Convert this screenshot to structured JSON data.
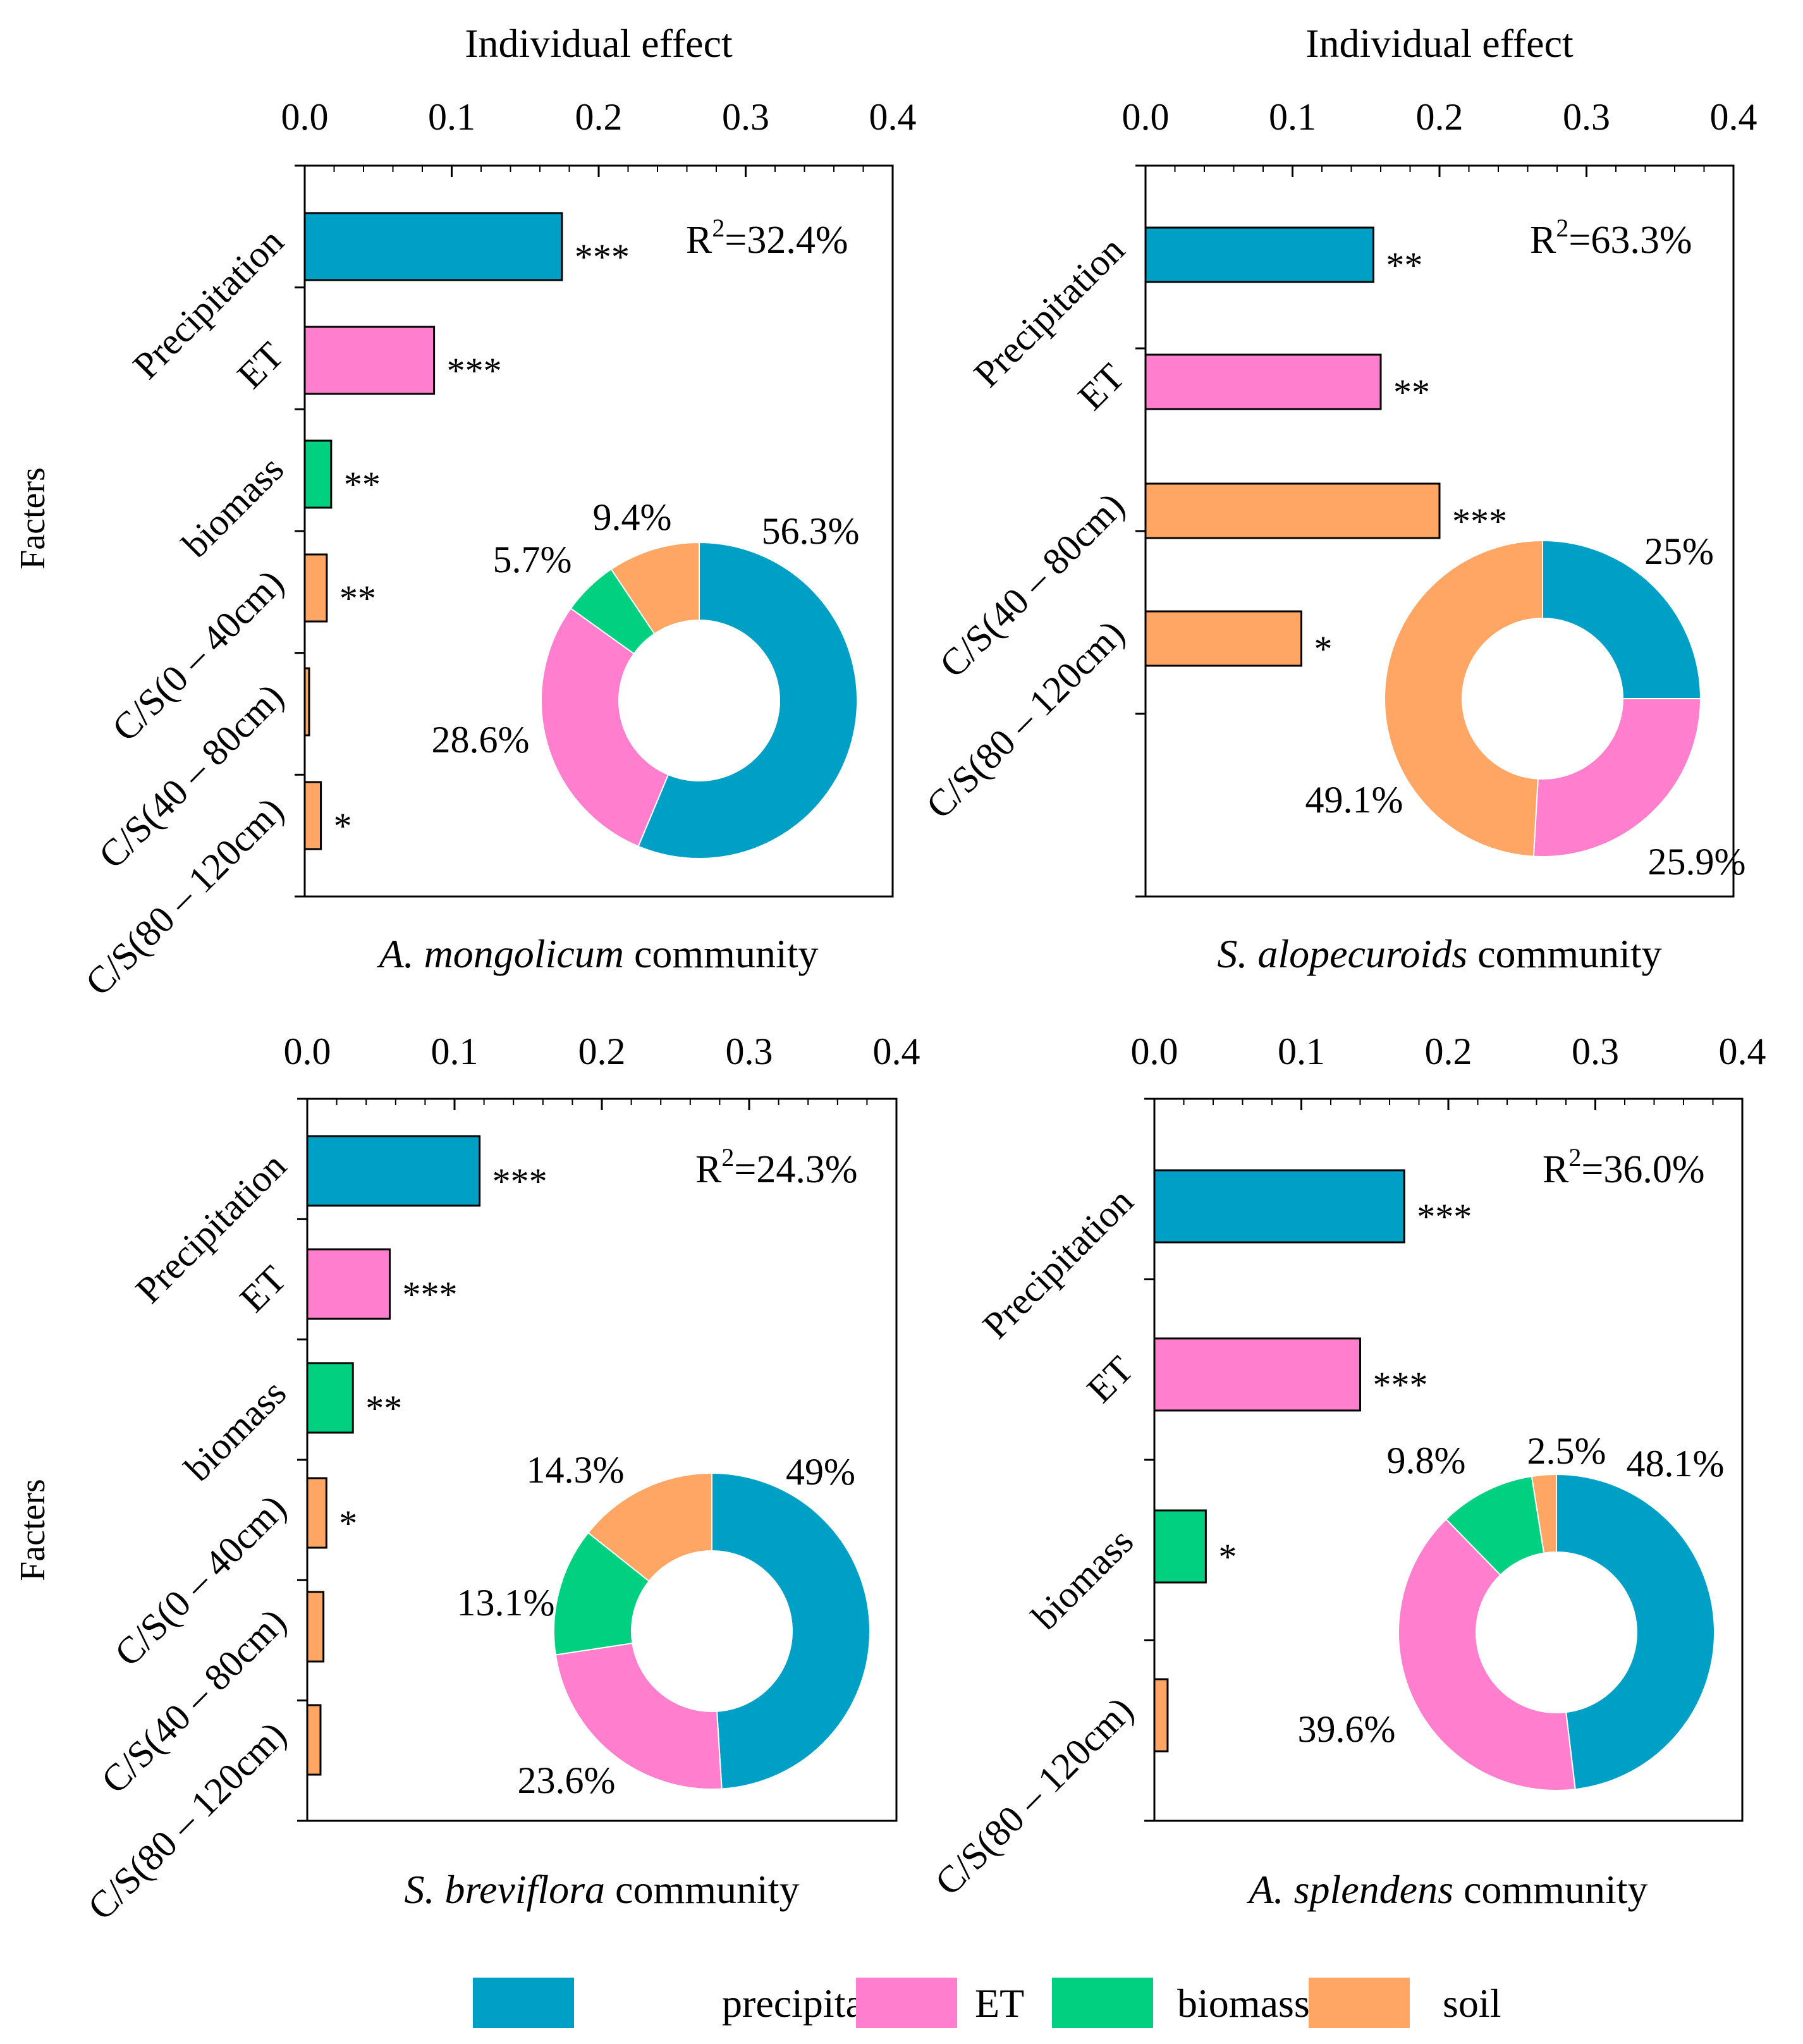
{
  "colors": {
    "precipitation": "#00A0C6",
    "ET": "#FF7ECD",
    "biomass": "#00D080",
    "soil": "#FFA664"
  },
  "y_axis_label": "Facters",
  "legend": [
    {
      "key": "precipitation",
      "label": "precipitation"
    },
    {
      "key": "ET",
      "label": "ET"
    },
    {
      "key": "biomass",
      "label": "biomass"
    },
    {
      "key": "soil",
      "label": "soil"
    }
  ],
  "chart_data": [
    {
      "type": "bar",
      "orientation": "horizontal",
      "top_title": "Individual effect",
      "species": "A. mongolicum",
      "community": "community",
      "xlim": [
        0,
        0.4
      ],
      "xticks": [
        "0.0",
        "0.1",
        "0.2",
        "0.3",
        "0.4"
      ],
      "r2_label": "R",
      "r2_sup": "2",
      "r2_value": "=32.4%",
      "bars": [
        {
          "label": "Precipitation",
          "value": 0.175,
          "sig": "***",
          "group": "precipitation"
        },
        {
          "label": "ET",
          "value": 0.088,
          "sig": "***",
          "group": "ET"
        },
        {
          "label": "biomass",
          "value": 0.018,
          "sig": "**",
          "group": "biomass"
        },
        {
          "label": "C/S(0 – 40cm)",
          "value": 0.015,
          "sig": "**",
          "group": "soil"
        },
        {
          "label": "C/S(40 – 80cm)",
          "value": 0.003,
          "sig": "",
          "group": "soil"
        },
        {
          "label": "C/S(80 – 120cm)",
          "value": 0.011,
          "sig": "*",
          "group": "soil"
        }
      ],
      "pie": {
        "type": "pie",
        "slices": [
          {
            "group": "precipitation",
            "value": 56.3,
            "label": "56.3%"
          },
          {
            "group": "ET",
            "value": 28.6,
            "label": "28.6%"
          },
          {
            "group": "biomass",
            "value": 5.7,
            "label": "5.7%"
          },
          {
            "group": "soil",
            "value": 9.4,
            "label": "9.4%"
          }
        ]
      }
    },
    {
      "type": "bar",
      "orientation": "horizontal",
      "top_title": "Individual effect",
      "species": "S. alopecuroids",
      "community": "community",
      "xlim": [
        0,
        0.4
      ],
      "xticks": [
        "0.0",
        "0.1",
        "0.2",
        "0.3",
        "0.4"
      ],
      "r2_label": "R",
      "r2_sup": "2",
      "r2_value": "=63.3%",
      "bars": [
        {
          "label": "Precipitation",
          "value": 0.155,
          "sig": "**",
          "group": "precipitation"
        },
        {
          "label": "ET",
          "value": 0.16,
          "sig": "**",
          "group": "ET"
        },
        {
          "label": "C/S(40 – 80cm)",
          "value": 0.2,
          "sig": "***",
          "group": "soil"
        },
        {
          "label": "C/S(80 – 120cm)",
          "value": 0.106,
          "sig": "*",
          "group": "soil"
        }
      ],
      "pie": {
        "type": "pie",
        "slices": [
          {
            "group": "precipitation",
            "value": 25,
            "label": "25%"
          },
          {
            "group": "ET",
            "value": 25.9,
            "label": "25.9%"
          },
          {
            "group": "soil",
            "value": 49.1,
            "label": "49.1%"
          }
        ]
      }
    },
    {
      "type": "bar",
      "orientation": "horizontal",
      "top_title": "",
      "species": "S. breviflora",
      "community": "community",
      "xlim": [
        0,
        0.4
      ],
      "xticks": [
        "0.0",
        "0.1",
        "0.2",
        "0.3",
        "0.4"
      ],
      "r2_label": "R",
      "r2_sup": "2",
      "r2_value": "=24.3%",
      "bars": [
        {
          "label": "Precipitation",
          "value": 0.117,
          "sig": "***",
          "group": "precipitation"
        },
        {
          "label": "ET",
          "value": 0.056,
          "sig": "***",
          "group": "ET"
        },
        {
          "label": "biomass",
          "value": 0.031,
          "sig": "**",
          "group": "biomass"
        },
        {
          "label": "C/S(0 – 40cm)",
          "value": 0.013,
          "sig": "*",
          "group": "soil"
        },
        {
          "label": "C/S(40 – 80cm)",
          "value": 0.011,
          "sig": "",
          "group": "soil"
        },
        {
          "label": "C/S(80 – 120cm)",
          "value": 0.009,
          "sig": "",
          "group": "soil"
        }
      ],
      "pie": {
        "type": "pie",
        "slices": [
          {
            "group": "precipitation",
            "value": 49,
            "label": "49%"
          },
          {
            "group": "ET",
            "value": 23.6,
            "label": "23.6%"
          },
          {
            "group": "biomass",
            "value": 13.1,
            "label": "13.1%"
          },
          {
            "group": "soil",
            "value": 14.3,
            "label": "14.3%"
          }
        ]
      }
    },
    {
      "type": "bar",
      "orientation": "horizontal",
      "top_title": "",
      "species": "A. splendens",
      "community": "community",
      "xlim": [
        0,
        0.4
      ],
      "xticks": [
        "0.0",
        "0.1",
        "0.2",
        "0.3",
        "0.4"
      ],
      "r2_label": "R",
      "r2_sup": "2",
      "r2_value": "=36.0%",
      "bars": [
        {
          "label": "Precipitation",
          "value": 0.17,
          "sig": "***",
          "group": "precipitation"
        },
        {
          "label": "ET",
          "value": 0.14,
          "sig": "***",
          "group": "ET"
        },
        {
          "label": "biomass",
          "value": 0.035,
          "sig": "*",
          "group": "biomass"
        },
        {
          "label": "C/S(80 – 120cm)",
          "value": 0.009,
          "sig": "",
          "group": "soil"
        }
      ],
      "pie": {
        "type": "pie",
        "slices": [
          {
            "group": "precipitation",
            "value": 48.1,
            "label": "48.1%"
          },
          {
            "group": "ET",
            "value": 39.6,
            "label": "39.6%"
          },
          {
            "group": "biomass",
            "value": 9.8,
            "label": "9.8%"
          },
          {
            "group": "soil",
            "value": 2.5,
            "label": "2.5%"
          }
        ]
      }
    }
  ]
}
